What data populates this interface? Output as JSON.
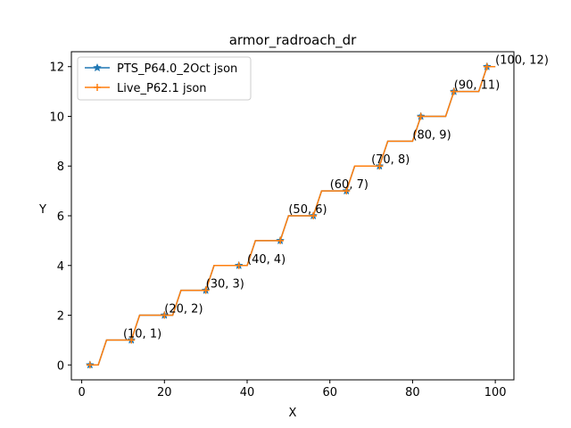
{
  "chart_data": {
    "type": "line",
    "title": "armor_radroach_dr",
    "xlabel": "X",
    "ylabel": "Y",
    "xlim": [
      -2.5,
      104.5
    ],
    "ylim": [
      -0.6,
      12.6
    ],
    "xticks": [
      0,
      20,
      40,
      60,
      80,
      100
    ],
    "yticks": [
      0,
      2,
      4,
      6,
      8,
      10,
      12
    ],
    "grid": false,
    "legend_position": "top-left",
    "series": [
      {
        "name": "PTS_P64.0_2Oct json",
        "color": "#1f77b4",
        "marker": "star",
        "x": [
          2,
          4,
          6,
          10,
          12,
          14,
          18,
          20,
          22,
          24,
          28,
          30,
          32,
          36,
          38,
          40,
          42,
          46,
          48,
          50,
          52,
          56,
          58,
          60,
          62,
          64,
          66,
          70,
          72,
          74,
          78,
          80,
          82,
          86,
          88,
          90,
          92,
          96,
          98,
          100
        ],
        "y": [
          0,
          0,
          1,
          1,
          1,
          2,
          2,
          2,
          2,
          3,
          3,
          3,
          4,
          4,
          4,
          4,
          5,
          5,
          5,
          6,
          6,
          6,
          7,
          7,
          7,
          7,
          8,
          8,
          8,
          9,
          9,
          9,
          10,
          10,
          10,
          11,
          11,
          11,
          12,
          12
        ]
      },
      {
        "name": "Live_P62.1 json",
        "color": "#ff7f0e",
        "marker": "plus",
        "x": [
          2,
          4,
          6,
          10,
          12,
          14,
          18,
          20,
          22,
          24,
          28,
          30,
          32,
          36,
          38,
          40,
          42,
          46,
          48,
          50,
          52,
          56,
          58,
          60,
          62,
          64,
          66,
          70,
          72,
          74,
          78,
          80,
          82,
          86,
          88,
          90,
          92,
          96,
          98,
          100
        ],
        "y": [
          0,
          0,
          1,
          1,
          1,
          2,
          2,
          2,
          2,
          3,
          3,
          3,
          4,
          4,
          4,
          4,
          5,
          5,
          5,
          6,
          6,
          6,
          7,
          7,
          7,
          7,
          8,
          8,
          8,
          9,
          9,
          9,
          10,
          10,
          10,
          11,
          11,
          11,
          12,
          12
        ]
      }
    ],
    "markers_x": [
      2,
      12,
      20,
      30,
      38,
      48,
      56,
      64,
      72,
      82,
      90,
      98
    ],
    "annotations": [
      {
        "x": 10,
        "y": 1,
        "text": "(10, 1)"
      },
      {
        "x": 20,
        "y": 2,
        "text": "(20, 2)"
      },
      {
        "x": 30,
        "y": 3,
        "text": "(30, 3)"
      },
      {
        "x": 40,
        "y": 4,
        "text": "(40, 4)"
      },
      {
        "x": 50,
        "y": 6,
        "text": "(50, 6)"
      },
      {
        "x": 60,
        "y": 7,
        "text": "(60, 7)"
      },
      {
        "x": 70,
        "y": 8,
        "text": "(70, 8)"
      },
      {
        "x": 80,
        "y": 9,
        "text": "(80, 9)"
      },
      {
        "x": 90,
        "y": 11,
        "text": "(90, 11)"
      },
      {
        "x": 100,
        "y": 12,
        "text": "(100, 12)"
      }
    ]
  }
}
